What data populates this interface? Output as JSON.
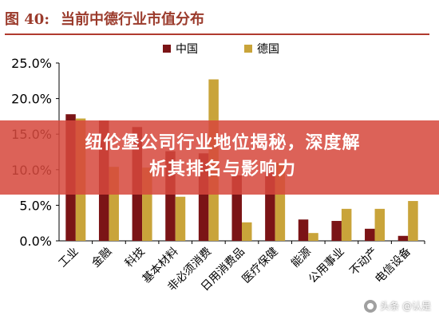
{
  "figure": {
    "number": "图 40:",
    "title": "当前中德行业市值分布"
  },
  "colors": {
    "china": "#7b1416",
    "germany": "#c9a43a",
    "axis": "#000000",
    "title": "#9b3b2c",
    "banner": "#d6483c"
  },
  "banner": {
    "line1": "纽伦堡公司行业地位揭秘，深度解",
    "line2": "析其排名与影响力"
  },
  "watermark": {
    "icon": "camera-icon",
    "text": "头条 @认是"
  },
  "chart_data": {
    "type": "bar",
    "categories": [
      "工业",
      "金融",
      "科技",
      "基本材料",
      "非必须消费",
      "日用消费品",
      "医疗保健",
      "能源",
      "公用事业",
      "不动产",
      "电信设备"
    ],
    "series": [
      {
        "name": "中国",
        "values": [
          17.8,
          16.9,
          16.0,
          12.6,
          12.3,
          9.2,
          11.0,
          3.0,
          2.8,
          1.7,
          0.7
        ]
      },
      {
        "name": "德国",
        "values": [
          17.2,
          10.4,
          10.3,
          6.2,
          22.7,
          2.6,
          11.0,
          1.1,
          4.5,
          4.5,
          5.6
        ]
      }
    ],
    "y_ticks": [
      "0.0%",
      "5.0%",
      "10.0%",
      "15.0%",
      "20.0%",
      "25.0%"
    ],
    "ylim": [
      0,
      25
    ],
    "legend_position": "top-center",
    "grid": false
  }
}
